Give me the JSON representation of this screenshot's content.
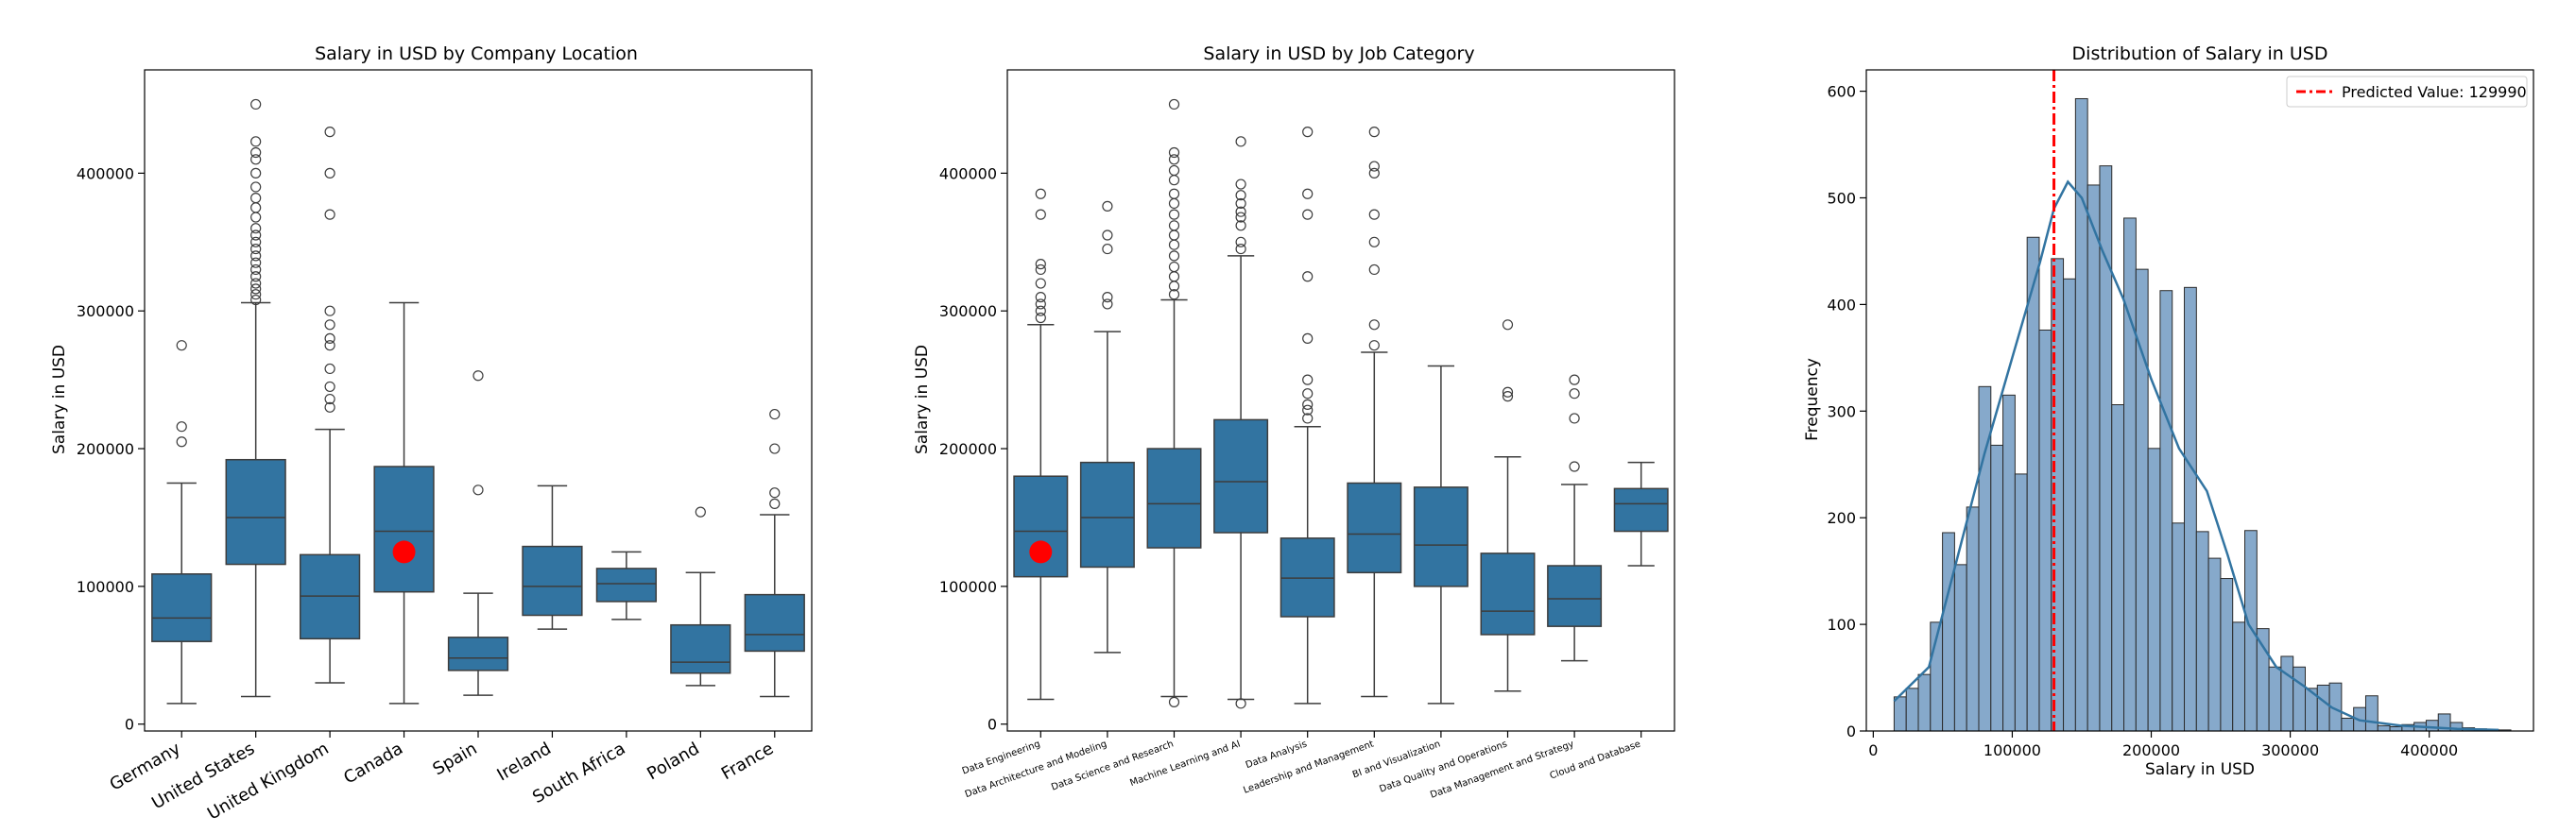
{
  "colors": {
    "box": "#3274a1",
    "hist": "#86a9cb",
    "kde": "#3274a1",
    "predicted": "#ff0000",
    "axis": "#000000"
  },
  "chart_data": [
    {
      "type": "box",
      "title": "Salary in USD by Company Location",
      "xlabel": "",
      "ylabel": "Salary in USD",
      "ylim": [
        -5000,
        475000
      ],
      "yticks": [
        0,
        100000,
        200000,
        300000,
        400000
      ],
      "ytick_labels": [
        "0",
        "100000",
        "200000",
        "300000",
        "400000"
      ],
      "categories": [
        "Germany",
        "United States",
        "United Kingdom",
        "Canada",
        "Spain",
        "Ireland",
        "South Africa",
        "Poland",
        "France"
      ],
      "boxes": [
        {
          "min": 15000,
          "q1": 60000,
          "median": 77000,
          "q3": 109000,
          "max": 175000,
          "outliers": [
            205000,
            216000,
            275000
          ]
        },
        {
          "min": 20000,
          "q1": 116000,
          "median": 150000,
          "q3": 192000,
          "max": 306000,
          "outliers": [
            308000,
            312000,
            316000,
            320000,
            325000,
            330000,
            335000,
            340000,
            345000,
            350000,
            355000,
            360000,
            368000,
            375000,
            382000,
            390000,
            400000,
            410000,
            415000,
            423000,
            450000
          ]
        },
        {
          "min": 30000,
          "q1": 62000,
          "median": 93000,
          "q3": 123000,
          "max": 214000,
          "outliers": [
            230000,
            236000,
            245000,
            258000,
            275000,
            280000,
            290000,
            300000,
            370000,
            400000,
            430000
          ]
        },
        {
          "min": 15000,
          "q1": 96000,
          "median": 140000,
          "q3": 187000,
          "max": 306000,
          "outliers": []
        },
        {
          "min": 21000,
          "q1": 39000,
          "median": 48000,
          "q3": 63000,
          "max": 95000,
          "outliers": [
            170000,
            253000
          ]
        },
        {
          "min": 69000,
          "q1": 79000,
          "median": 100000,
          "q3": 129000,
          "max": 173000,
          "outliers": []
        },
        {
          "min": 76000,
          "q1": 89000,
          "median": 102000,
          "q3": 113000,
          "max": 125000,
          "outliers": []
        },
        {
          "min": 28000,
          "q1": 37000,
          "median": 45000,
          "q3": 72000,
          "max": 110000,
          "outliers": [
            154000
          ]
        },
        {
          "min": 20000,
          "q1": 53000,
          "median": 65000,
          "q3": 94000,
          "max": 152000,
          "outliers": [
            160000,
            168000,
            200000,
            225000
          ]
        }
      ],
      "predicted_point": {
        "category": "Canada",
        "value": 125000
      }
    },
    {
      "type": "box",
      "title": "Salary in USD by Job Category",
      "xlabel": "",
      "ylabel": "Salary in USD",
      "ylim": [
        -5000,
        475000
      ],
      "yticks": [
        0,
        100000,
        200000,
        300000,
        400000
      ],
      "ytick_labels": [
        "0",
        "100000",
        "200000",
        "300000",
        "400000"
      ],
      "categories": [
        "Data Engineering",
        "Data Architecture and Modeling",
        "Data Science and Research",
        "Machine Learning and AI",
        "Data Analysis",
        "Leadership and Management",
        "BI and Visualization",
        "Data Quality and Operations",
        "Data Management and Strategy",
        "Cloud and Database"
      ],
      "boxes": [
        {
          "min": 18000,
          "q1": 107000,
          "median": 140000,
          "q3": 180000,
          "max": 290000,
          "outliers": [
            295000,
            300000,
            305000,
            310000,
            320000,
            330000,
            334000,
            370000,
            385000
          ]
        },
        {
          "min": 52000,
          "q1": 114000,
          "median": 150000,
          "q3": 190000,
          "max": 285000,
          "outliers": [
            305000,
            310000,
            345000,
            355000,
            376000
          ]
        },
        {
          "min": 20000,
          "q1": 128000,
          "median": 160000,
          "q3": 200000,
          "max": 308000,
          "outliers": [
            16000,
            312000,
            318000,
            325000,
            332000,
            340000,
            348000,
            355000,
            362000,
            370000,
            378000,
            385000,
            395000,
            402000,
            410000,
            415000,
            450000
          ]
        },
        {
          "min": 18000,
          "q1": 139000,
          "median": 176000,
          "q3": 221000,
          "max": 340000,
          "outliers": [
            15000,
            345000,
            350000,
            362000,
            368000,
            372000,
            378000,
            384000,
            392000,
            423000
          ]
        },
        {
          "min": 15000,
          "q1": 78000,
          "median": 106000,
          "q3": 135000,
          "max": 216000,
          "outliers": [
            222000,
            228000,
            232000,
            240000,
            250000,
            280000,
            325000,
            370000,
            385000,
            430000
          ]
        },
        {
          "min": 20000,
          "q1": 110000,
          "median": 138000,
          "q3": 175000,
          "max": 270000,
          "outliers": [
            275000,
            290000,
            330000,
            350000,
            370000,
            400000,
            405000,
            430000
          ]
        },
        {
          "min": 15000,
          "q1": 100000,
          "median": 130000,
          "q3": 172000,
          "max": 260000,
          "outliers": []
        },
        {
          "min": 24000,
          "q1": 65000,
          "median": 82000,
          "q3": 124000,
          "max": 194000,
          "outliers": [
            238000,
            241000,
            290000
          ]
        },
        {
          "min": 46000,
          "q1": 71000,
          "median": 91000,
          "q3": 115000,
          "max": 174000,
          "outliers": [
            187000,
            222000,
            240000,
            250000
          ]
        },
        {
          "min": 115000,
          "q1": 140000,
          "median": 160000,
          "q3": 171000,
          "max": 190000,
          "outliers": []
        }
      ],
      "predicted_point": {
        "category": "Data Engineering",
        "value": 125000
      }
    },
    {
      "type": "histogram",
      "title": "Distribution of Salary in USD",
      "xlabel": "Salary in USD",
      "ylabel": "Frequency",
      "xlim": [
        -5000,
        475000
      ],
      "ylim": [
        0,
        620
      ],
      "xticks": [
        0,
        100000,
        200000,
        300000,
        400000
      ],
      "xtick_labels": [
        "0",
        "100000",
        "200000",
        "300000",
        "400000"
      ],
      "yticks": [
        0,
        100,
        200,
        300,
        400,
        500,
        600
      ],
      "ytick_labels": [
        "0",
        "100",
        "200",
        "300",
        "400",
        "500",
        "600"
      ],
      "bin_start": 15000,
      "bin_width": 8700,
      "counts": [
        32,
        40,
        53,
        102,
        186,
        156,
        210,
        323,
        268,
        315,
        241,
        463,
        376,
        443,
        424,
        593,
        512,
        530,
        306,
        481,
        433,
        265,
        413,
        195,
        416,
        187,
        162,
        143,
        102,
        188,
        96,
        60,
        70,
        60,
        40,
        43,
        45,
        12,
        22,
        33,
        5,
        4,
        6,
        8,
        10,
        16,
        8,
        3,
        2,
        1,
        1
      ],
      "kde": [
        [
          15000,
          28
        ],
        [
          40000,
          60
        ],
        [
          60000,
          160
        ],
        [
          80000,
          260
        ],
        [
          100000,
          350
        ],
        [
          120000,
          440
        ],
        [
          130000,
          490
        ],
        [
          140000,
          515
        ],
        [
          150000,
          500
        ],
        [
          165000,
          450
        ],
        [
          180000,
          405
        ],
        [
          200000,
          330
        ],
        [
          220000,
          265
        ],
        [
          240000,
          225
        ],
        [
          255000,
          165
        ],
        [
          270000,
          100
        ],
        [
          290000,
          60
        ],
        [
          310000,
          42
        ],
        [
          330000,
          22
        ],
        [
          350000,
          10
        ],
        [
          380000,
          5
        ],
        [
          420000,
          2
        ],
        [
          450000,
          1
        ]
      ],
      "predicted_value": 129990,
      "legend": {
        "label": "Predicted Value: 129990",
        "position": "top-right"
      }
    }
  ]
}
